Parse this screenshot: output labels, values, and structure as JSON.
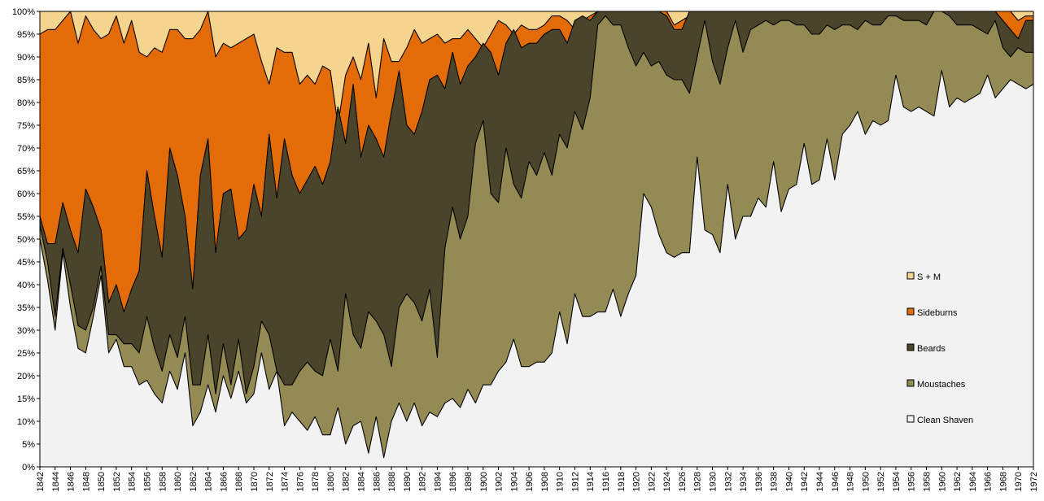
{
  "chart_data": {
    "type": "area",
    "stacked": true,
    "normalized": true,
    "title": "",
    "xlabel": "",
    "ylabel": "",
    "ylim": [
      0,
      100
    ],
    "y_tick_labels": [
      "0%",
      "5%",
      "10%",
      "15%",
      "20%",
      "25%",
      "30%",
      "35%",
      "40%",
      "45%",
      "50%",
      "55%",
      "60%",
      "65%",
      "70%",
      "75%",
      "80%",
      "85%",
      "90%",
      "95%",
      "100%"
    ],
    "x_tick_labels": [
      "1842",
      "1844",
      "1846",
      "1848",
      "1850",
      "1852",
      "1854",
      "1856",
      "1858",
      "1860",
      "1862",
      "1864",
      "1866",
      "1868",
      "1870",
      "1872",
      "1874",
      "1876",
      "1878",
      "1880",
      "1882",
      "1884",
      "1886",
      "1888",
      "1890",
      "1892",
      "1894",
      "1896",
      "1898",
      "1900",
      "1902",
      "1904",
      "1906",
      "1908",
      "1910",
      "1912",
      "1914",
      "1916",
      "1918",
      "1920",
      "1922",
      "1924",
      "1926",
      "1928",
      "1930",
      "1932",
      "1934",
      "1936",
      "1938",
      "1940",
      "1942",
      "1944",
      "1946",
      "1948",
      "1950",
      "1952",
      "1954",
      "1956",
      "1958",
      "1960",
      "1962",
      "1964",
      "1966",
      "1968",
      "1970",
      "1972"
    ],
    "x_start": 1842,
    "x_end": 1972,
    "legend_position": "right",
    "grid": false,
    "cumulative_boundaries": {
      "clean_shaven": [
        50,
        41,
        30,
        47,
        35,
        26,
        25,
        33,
        42,
        25,
        28,
        22,
        22,
        18,
        19,
        16,
        14,
        21,
        17,
        25,
        9,
        12,
        18,
        12,
        20,
        15,
        21,
        14,
        16,
        25,
        17,
        21,
        9,
        12,
        10,
        8,
        11,
        7,
        7,
        13,
        5,
        9,
        10,
        3,
        11,
        2,
        10,
        14,
        10,
        14,
        9,
        12,
        11,
        14,
        15,
        13,
        17,
        14,
        18,
        18,
        21,
        23,
        28,
        22,
        22,
        23,
        23,
        25,
        34,
        27,
        38,
        33,
        33,
        34,
        34,
        39,
        33,
        38,
        42,
        60,
        57,
        51,
        47,
        46,
        47,
        47,
        68,
        52,
        51,
        47,
        62,
        50,
        55,
        55,
        59,
        57,
        67,
        56,
        61,
        62,
        71,
        62,
        63,
        72,
        63,
        73,
        75,
        78,
        73,
        76,
        75,
        76,
        86,
        79,
        78,
        79,
        78,
        77,
        87,
        79,
        81,
        80,
        81,
        82,
        86,
        81,
        83,
        85,
        84,
        83,
        84
      ],
      "moustaches": [
        53,
        45,
        33,
        48,
        40,
        31,
        30,
        35,
        44,
        29,
        29,
        27,
        27,
        25,
        33,
        26,
        21,
        29,
        24,
        33,
        18,
        18,
        29,
        16,
        27,
        18,
        28,
        16,
        22,
        32,
        29,
        21,
        18,
        18,
        21,
        23,
        21,
        20,
        28,
        21,
        38,
        29,
        26,
        34,
        32,
        29,
        22,
        35,
        38,
        36,
        32,
        39,
        24,
        48,
        57,
        50,
        55,
        71,
        76,
        60,
        58,
        70,
        62,
        59,
        67,
        64,
        69,
        64,
        73,
        70,
        78,
        74,
        81,
        97,
        99,
        97,
        97,
        92,
        88,
        91,
        88,
        89,
        86,
        85,
        85,
        82,
        90,
        98,
        89,
        84,
        92,
        98,
        91,
        96,
        97,
        98,
        97,
        98,
        98,
        97,
        97,
        95,
        95,
        97,
        96,
        97,
        97,
        96,
        98,
        97,
        97,
        99,
        99,
        98,
        98,
        98,
        97,
        100,
        100,
        99,
        97,
        97,
        97,
        96,
        95,
        98,
        92,
        90,
        92,
        91,
        91
      ],
      "beards": [
        55,
        49,
        49,
        58,
        52,
        47,
        61,
        57,
        52,
        36,
        40,
        34,
        39,
        43,
        65,
        55,
        46,
        70,
        64,
        55,
        39,
        64,
        72,
        47,
        60,
        61,
        50,
        52,
        62,
        55,
        73,
        59,
        72,
        64,
        60,
        63,
        66,
        62,
        67,
        79,
        71,
        84,
        68,
        75,
        72,
        68,
        78,
        87,
        75,
        73,
        78,
        85,
        86,
        83,
        91,
        84,
        88,
        90,
        93,
        91,
        86,
        93,
        96,
        92,
        93,
        93,
        95,
        96,
        96,
        93,
        98,
        99,
        98,
        100,
        100,
        100,
        100,
        100,
        100,
        100,
        100,
        100,
        99,
        96,
        96,
        100,
        100,
        100,
        100,
        100,
        100,
        100,
        100,
        100,
        100,
        100,
        100,
        100,
        100,
        100,
        100,
        100,
        100,
        100,
        100,
        100,
        100,
        100,
        100,
        100,
        100,
        100,
        100,
        100,
        100,
        100,
        100,
        100,
        100,
        100,
        100,
        100,
        100,
        100,
        100,
        100,
        98,
        96,
        94,
        98,
        98
      ],
      "sideburns": [
        95,
        96,
        96,
        98,
        100,
        93,
        99,
        96,
        94,
        95,
        99,
        93,
        98,
        91,
        90,
        92,
        91,
        96,
        96,
        94,
        94,
        96,
        100,
        90,
        93,
        92,
        93,
        94,
        95,
        89,
        84,
        92,
        91,
        91,
        84,
        86,
        84,
        88,
        87,
        75,
        86,
        90,
        85,
        93,
        81,
        94,
        89,
        89,
        92,
        96,
        93,
        94,
        95,
        93,
        94,
        94,
        96,
        94,
        92,
        95,
        98,
        97,
        95,
        97,
        96,
        96,
        97,
        99,
        99,
        98,
        96,
        98,
        99,
        100,
        100,
        100,
        100,
        100,
        100,
        99,
        100,
        100,
        100,
        97,
        98,
        99,
        100,
        100,
        100,
        100,
        100,
        100,
        100,
        100,
        100,
        100,
        100,
        100,
        100,
        100,
        100,
        100,
        100,
        100,
        100,
        100,
        100,
        100,
        100,
        100,
        100,
        100,
        100,
        100,
        100,
        100,
        100,
        100,
        100,
        100,
        100,
        100,
        100,
        100,
        100,
        100,
        100,
        100,
        98,
        99,
        99
      ],
      "s_plus_m": [
        100,
        100,
        100,
        100,
        100,
        100,
        100,
        100,
        100,
        100,
        100,
        100,
        100,
        100,
        100,
        100,
        100,
        100,
        100,
        100,
        100,
        100,
        100,
        100,
        100,
        100,
        100,
        100,
        100,
        100,
        100,
        100,
        100,
        100,
        100,
        100,
        100,
        100,
        100,
        100,
        100,
        100,
        100,
        100,
        100,
        100,
        100,
        100,
        100,
        100,
        100,
        100,
        100,
        100,
        100,
        100,
        100,
        100,
        100,
        100,
        100,
        100,
        100,
        100,
        100,
        100,
        100,
        100,
        100,
        100,
        100,
        100,
        100,
        100,
        100,
        100,
        100,
        100,
        100,
        100,
        100,
        100,
        100,
        100,
        100,
        100,
        100,
        100,
        100,
        100,
        100,
        100,
        100,
        100,
        100,
        100,
        100,
        100,
        100,
        100,
        100,
        100,
        100,
        100,
        100,
        100,
        100,
        100,
        100,
        100,
        100,
        100,
        100,
        100,
        100,
        100,
        100,
        100,
        100,
        100,
        100,
        100,
        100,
        100,
        100,
        100,
        100,
        100,
        100,
        100,
        100
      ]
    },
    "series": [
      {
        "name": "Clean Shaven",
        "key": "clean_shaven",
        "color": "#f2f2f2"
      },
      {
        "name": "Moustaches",
        "key": "moustaches",
        "color": "#948a54"
      },
      {
        "name": "Beards",
        "key": "beards",
        "color": "#4a442a"
      },
      {
        "name": "Sideburns",
        "key": "sideburns",
        "color": "#e36c09"
      },
      {
        "name": "S + M",
        "key": "s_plus_m",
        "color": "#f5d58e"
      }
    ],
    "legend_order": [
      "S + M",
      "Sideburns",
      "Beards",
      "Moustaches",
      "Clean Shaven"
    ]
  }
}
